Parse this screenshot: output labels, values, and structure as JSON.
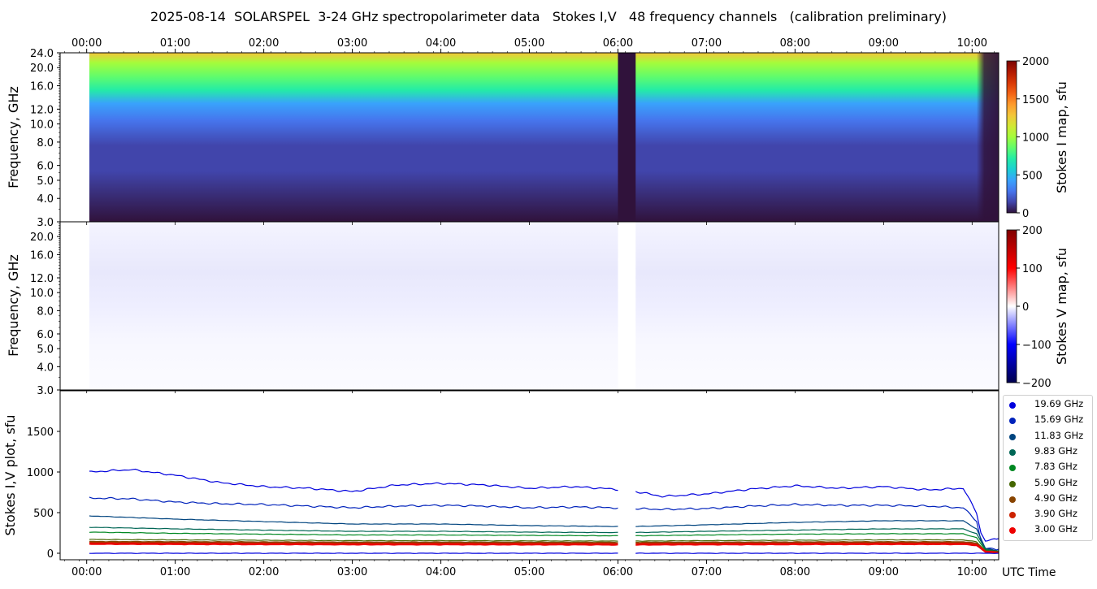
{
  "title": "2025-08-14  SOLARSPEL  3-24 GHz spectropolarimeter data   Stokes I,V   48 frequency channels   (calibration preliminary)",
  "time_ticks": [
    "00:00",
    "01:00",
    "02:00",
    "03:00",
    "04:00",
    "05:00",
    "06:00",
    "07:00",
    "08:00",
    "09:00",
    "10:00"
  ],
  "colors": {
    "turbo": [
      "#30123b",
      "#4145ab",
      "#4675ed",
      "#39a2fc",
      "#1bcfd4",
      "#24eca6",
      "#61fc6c",
      "#a4fc3b",
      "#d1e834",
      "#f3c63a",
      "#fe9b2d",
      "#f36315",
      "#d93806",
      "#b11901",
      "#7a0403"
    ],
    "seismic": [
      "#00004c",
      "#0000ff",
      "#ffffff",
      "#ff0000",
      "#7f0000"
    ],
    "series": [
      "#0000dd",
      "#0022bb",
      "#00447f",
      "#006655",
      "#008822",
      "#446600",
      "#884400",
      "#cc2200",
      "#ee0000"
    ]
  },
  "chart_data": [
    {
      "type": "heatmap",
      "panel": "stokes-i-map",
      "ylabel": "Frequency, GHz",
      "yticks": [
        "24.0",
        "20.0",
        "16.0",
        "12.0",
        "10.0",
        "8.0",
        "6.0",
        "5.0",
        "4.0",
        "3.0"
      ],
      "ylim": [
        3.0,
        24.0
      ],
      "yscale": "log",
      "colorbar_label": "Stokes I map, sfu",
      "colorbar_ticks": [
        "2000",
        "1500",
        "1000",
        "500",
        "0"
      ],
      "clim": [
        0,
        2000
      ],
      "colormap": "turbo",
      "data_start_hour": 0.03,
      "gap_hours": [
        6.0,
        6.2
      ],
      "end_decay_hours": [
        10.05,
        10.25
      ]
    },
    {
      "type": "heatmap",
      "panel": "stokes-v-map",
      "ylabel": "Frequency, GHz",
      "yticks": [
        "20.0",
        "16.0",
        "12.0",
        "10.0",
        "8.0",
        "6.0",
        "5.0",
        "4.0",
        "3.0"
      ],
      "ylim": [
        3.0,
        24.0
      ],
      "yscale": "log",
      "colorbar_label": "Stokes V map, sfu",
      "colorbar_ticks": [
        "200",
        "100",
        "0",
        "−100",
        "−200"
      ],
      "clim": [
        -200,
        200
      ],
      "colormap": "seismic"
    },
    {
      "type": "line",
      "panel": "stokes-iv-plot",
      "ylabel": "Stokes I,V plot, sfu",
      "xlabel": "UTC Time",
      "yticks": [
        "1500",
        "1000",
        "500",
        "0"
      ],
      "ylim": [
        -80,
        2000
      ],
      "xlim": [
        -0.3,
        10.3
      ],
      "series": [
        {
          "name": "19.69 GHz",
          "x": [
            0.03,
            0.5,
            1.0,
            1.5,
            2.0,
            2.5,
            3.0,
            3.5,
            4.0,
            4.5,
            5.0,
            5.5,
            5.95,
            6.2,
            6.5,
            7.0,
            7.5,
            8.0,
            8.5,
            9.0,
            9.5,
            9.9,
            10.05,
            10.1,
            10.15,
            10.3
          ],
          "values": [
            1000,
            1030,
            960,
            870,
            820,
            800,
            760,
            840,
            860,
            840,
            800,
            820,
            790,
            760,
            700,
            730,
            790,
            830,
            800,
            820,
            780,
            800,
            500,
            250,
            150,
            180
          ]
        },
        {
          "name": "15.69 GHz",
          "x": [
            0.03,
            0.5,
            1.0,
            1.5,
            2.0,
            2.5,
            3.0,
            3.5,
            4.0,
            4.5,
            5.0,
            5.5,
            5.95,
            6.2,
            6.5,
            7.0,
            7.5,
            8.0,
            8.5,
            9.0,
            9.5,
            9.9,
            10.05,
            10.1,
            10.15,
            10.3
          ],
          "values": [
            680,
            670,
            630,
            610,
            600,
            580,
            560,
            580,
            590,
            580,
            560,
            570,
            560,
            550,
            540,
            550,
            580,
            600,
            590,
            590,
            580,
            560,
            400,
            150,
            60,
            50
          ]
        },
        {
          "name": "11.83 GHz",
          "x": [
            0.03,
            1.0,
            2.0,
            3.0,
            4.0,
            5.0,
            5.95,
            6.2,
            7.0,
            8.0,
            9.0,
            9.9,
            10.05,
            10.15,
            10.3
          ],
          "values": [
            460,
            420,
            390,
            360,
            360,
            340,
            330,
            330,
            350,
            380,
            400,
            400,
            300,
            60,
            30
          ]
        },
        {
          "name": "9.83 GHz",
          "x": [
            0.03,
            1.0,
            2.0,
            3.0,
            4.0,
            5.0,
            5.95,
            6.2,
            7.0,
            8.0,
            9.0,
            9.9,
            10.05,
            10.15,
            10.3
          ],
          "values": [
            320,
            300,
            285,
            270,
            270,
            260,
            255,
            255,
            270,
            285,
            300,
            300,
            240,
            50,
            25
          ]
        },
        {
          "name": "7.83 GHz",
          "x": [
            0.03,
            1.0,
            2.0,
            3.0,
            4.0,
            5.0,
            5.95,
            6.2,
            7.0,
            8.0,
            9.0,
            9.9,
            10.05,
            10.15,
            10.3
          ],
          "values": [
            260,
            245,
            235,
            225,
            225,
            220,
            215,
            215,
            225,
            235,
            240,
            240,
            190,
            40,
            20
          ]
        },
        {
          "name": "5.90 GHz",
          "x": [
            0.03,
            1.0,
            2.0,
            3.0,
            4.0,
            5.0,
            5.95,
            6.2,
            7.0,
            8.0,
            9.0,
            9.9,
            10.05,
            10.15,
            10.3
          ],
          "values": [
            170,
            165,
            160,
            155,
            155,
            152,
            150,
            150,
            155,
            160,
            165,
            165,
            140,
            30,
            15
          ]
        },
        {
          "name": "4.90 GHz",
          "x": [
            0.03,
            1.0,
            2.0,
            3.0,
            4.0,
            5.0,
            5.95,
            6.2,
            7.0,
            8.0,
            9.0,
            9.9,
            10.05,
            10.15,
            10.3
          ],
          "values": [
            140,
            138,
            135,
            133,
            133,
            131,
            130,
            130,
            132,
            135,
            137,
            137,
            120,
            25,
            12
          ]
        },
        {
          "name": "3.90 GHz",
          "x": [
            0.03,
            1.0,
            2.0,
            3.0,
            4.0,
            5.0,
            5.95,
            6.2,
            7.0,
            8.0,
            9.0,
            9.9,
            10.05,
            10.15,
            10.3
          ],
          "values": [
            125,
            122,
            120,
            118,
            118,
            117,
            116,
            116,
            118,
            120,
            122,
            122,
            110,
            20,
            10
          ]
        },
        {
          "name": "3.00 GHz",
          "x": [
            0.03,
            1.0,
            2.0,
            3.0,
            4.0,
            5.0,
            5.95,
            6.2,
            7.0,
            8.0,
            9.0,
            9.9,
            10.05,
            10.15,
            10.3
          ],
          "values": [
            115,
            112,
            110,
            108,
            108,
            107,
            106,
            106,
            108,
            110,
            112,
            112,
            100,
            18,
            8
          ]
        },
        {
          "name": "",
          "x": [
            0.03,
            10.3
          ],
          "values": [
            0,
            0
          ]
        }
      ]
    }
  ]
}
